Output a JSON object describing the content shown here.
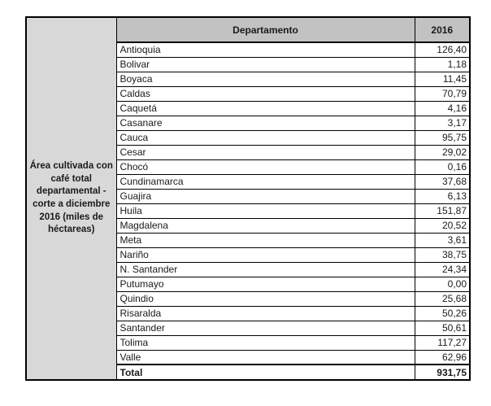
{
  "table": {
    "row_label": "Área cultivada con café total departamental - corte a diciembre 2016 (miles de héctareas)",
    "headers": {
      "department": "Departamento",
      "year": "2016"
    },
    "rows": [
      {
        "department": "Antioquia",
        "value": "126,40"
      },
      {
        "department": "Bolivar",
        "value": "1,18"
      },
      {
        "department": "Boyaca",
        "value": "11,45"
      },
      {
        "department": "Caldas",
        "value": "70,79"
      },
      {
        "department": "Caquetá",
        "value": "4,16"
      },
      {
        "department": "Casanare",
        "value": "3,17"
      },
      {
        "department": "Cauca",
        "value": "95,75"
      },
      {
        "department": "Cesar",
        "value": "29,02"
      },
      {
        "department": "Chocó",
        "value": "0,16"
      },
      {
        "department": "Cundinamarca",
        "value": "37,68"
      },
      {
        "department": "Guajira",
        "value": "6,13"
      },
      {
        "department": "Huila",
        "value": "151,87"
      },
      {
        "department": "Magdalena",
        "value": "20,52"
      },
      {
        "department": "Meta",
        "value": "3,61"
      },
      {
        "department": "Nariño",
        "value": "38,75"
      },
      {
        "department": "N. Santander",
        "value": "24,34"
      },
      {
        "department": "Putumayo",
        "value": "0,00"
      },
      {
        "department": "Quindio",
        "value": "25,68"
      },
      {
        "department": "Risaralda",
        "value": "50,26"
      },
      {
        "department": "Santander",
        "value": "50,61"
      },
      {
        "department": "Tolima",
        "value": "117,27"
      },
      {
        "department": "Valle",
        "value": "62,96"
      }
    ],
    "total": {
      "label": "Total",
      "value": "931,75"
    }
  },
  "colors": {
    "header_background": "#c2c2c2",
    "label_background": "#d8d8d8",
    "border": "#000000",
    "text": "#1a1a1a",
    "page_background": "#ffffff"
  }
}
